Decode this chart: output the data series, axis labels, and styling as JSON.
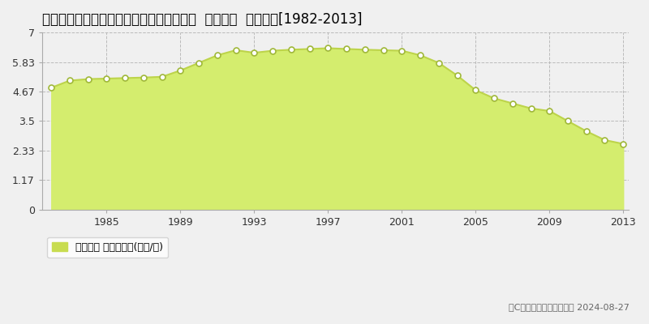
{
  "title": "大分県別府市大字内竀字森谷筋１９５８番  地価公示  地価推移[1982-2013]",
  "years": [
    1982,
    1983,
    1984,
    1985,
    1986,
    1987,
    1988,
    1989,
    1990,
    1991,
    1992,
    1993,
    1994,
    1995,
    1996,
    1997,
    1998,
    1999,
    2000,
    2001,
    2002,
    2003,
    2004,
    2005,
    2006,
    2007,
    2008,
    2009,
    2010,
    2011,
    2012,
    2013
  ],
  "values": [
    4.82,
    5.1,
    5.16,
    5.18,
    5.2,
    5.22,
    5.25,
    5.5,
    5.8,
    6.1,
    6.3,
    6.2,
    6.28,
    6.32,
    6.35,
    6.38,
    6.35,
    6.32,
    6.3,
    6.28,
    6.1,
    5.8,
    5.3,
    4.72,
    4.4,
    4.2,
    4.0,
    3.9,
    3.5,
    3.1,
    2.75,
    2.6
  ],
  "yticks": [
    0,
    1.17,
    2.33,
    3.5,
    4.67,
    5.83,
    7
  ],
  "ytick_labels": [
    "0",
    "1.17",
    "2.33",
    "3.5",
    "4.67",
    "5.83",
    "7"
  ],
  "xticks": [
    1985,
    1989,
    1993,
    1997,
    2001,
    2005,
    2009,
    2013
  ],
  "ylim": [
    0,
    7
  ],
  "xlim_min": 1982,
  "xlim_max": 2013,
  "fill_color": "#d4ed6e",
  "line_color": "#bdd44a",
  "marker_face_color": "#ffffff",
  "marker_edge_color": "#a0b83a",
  "bg_color": "#f0f0f0",
  "plot_bg_color": "#f0f0f0",
  "grid_color": "#bbbbbb",
  "legend_label": "地価公示 平均嵪単価(万円/嵪)",
  "legend_color": "#c8dc50",
  "copyright_text": "（C）土地価格ドットコム 2024-08-27",
  "title_fontsize": 12,
  "axis_fontsize": 9,
  "legend_fontsize": 9
}
